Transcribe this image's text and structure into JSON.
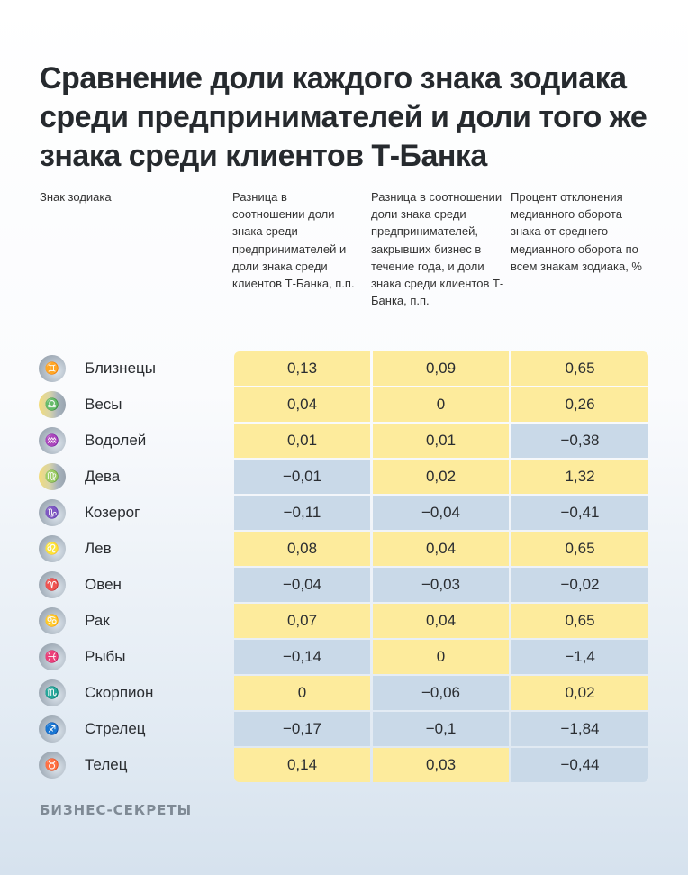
{
  "title": "Сравнение доли каждого знака зодиака среди предпринимателей и доли того же знака среди клиентов Т-Банка",
  "headers": [
    "Знак зодиака",
    "Разница в соотношении доли знака среди предпринимателей и доли знака среди клиентов Т-Банка, п.п.",
    "Разница в соотношении доли знака среди предпринимателей, закрывших бизнес в течение года, и доли знака среди клиентов Т-Банка, п.п.",
    "Процент отклонения медианного оборота знака от среднего медианного оборота по всем знакам зодиака, %"
  ],
  "colors": {
    "positive": "#fdeb9c",
    "negative": "#c9d9e8"
  },
  "rows": [
    {
      "sign": "Близнецы",
      "glyph": "♊",
      "v": [
        "0,13",
        "0,09",
        "0,65"
      ]
    },
    {
      "sign": "Весы",
      "glyph": "♎",
      "v": [
        "0,04",
        "0",
        "0,26"
      ]
    },
    {
      "sign": "Водолей",
      "glyph": "♒",
      "v": [
        "0,01",
        "0,01",
        "−0,38"
      ]
    },
    {
      "sign": "Дева",
      "glyph": "♍",
      "v": [
        "−0,01",
        "0,02",
        "1,32"
      ]
    },
    {
      "sign": "Козерог",
      "glyph": "♑",
      "v": [
        "−0,11",
        "−0,04",
        "−0,41"
      ]
    },
    {
      "sign": "Лев",
      "glyph": "♌",
      "v": [
        "0,08",
        "0,04",
        "0,65"
      ]
    },
    {
      "sign": "Овен",
      "glyph": "♈",
      "v": [
        "−0,04",
        "−0,03",
        "−0,02"
      ]
    },
    {
      "sign": "Рак",
      "glyph": "♋",
      "v": [
        "0,07",
        "0,04",
        "0,65"
      ]
    },
    {
      "sign": "Рыбы",
      "glyph": "♓",
      "v": [
        "−0,14",
        "0",
        "−1,4"
      ]
    },
    {
      "sign": "Скорпион",
      "glyph": "♏",
      "v": [
        "0",
        "−0,06",
        "0,02"
      ]
    },
    {
      "sign": "Стрелец",
      "glyph": "♐",
      "v": [
        "−0,17",
        "−0,1",
        "−1,84"
      ]
    },
    {
      "sign": "Телец",
      "glyph": "♉",
      "v": [
        "0,14",
        "0,03",
        "−0,44"
      ]
    }
  ],
  "brand": "БИЗНЕС-СЕКРЕТЫ"
}
